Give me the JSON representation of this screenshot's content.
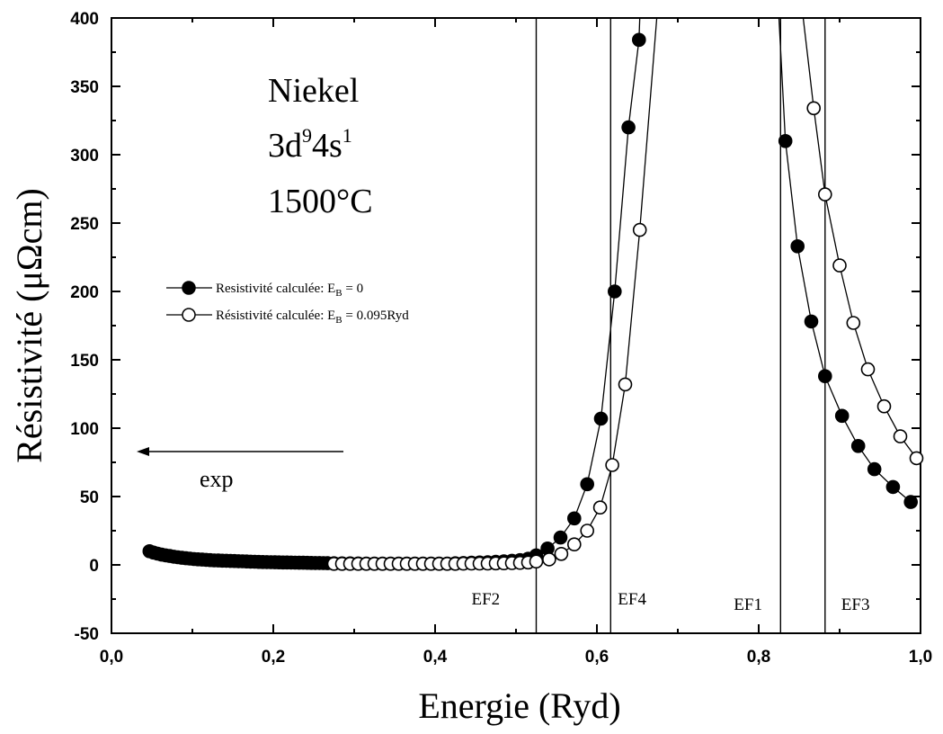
{
  "chart_data": {
    "type": "scatter",
    "xlabel": "Energie (Ryd)",
    "ylabel": "Résistivité (μΩcm)",
    "xlim": [
      0.0,
      1.0
    ],
    "ylim": [
      -50,
      400
    ],
    "x_ticks": [
      "0,0",
      "0,2",
      "0,4",
      "0,6",
      "0,8",
      "1,0"
    ],
    "x_tick_values": [
      0.0,
      0.2,
      0.4,
      0.6,
      0.8,
      1.0
    ],
    "y_ticks": [
      "-50",
      "0",
      "50",
      "100",
      "150",
      "200",
      "250",
      "300",
      "350",
      "400"
    ],
    "y_tick_values": [
      -50,
      0,
      50,
      100,
      150,
      200,
      250,
      300,
      350,
      400
    ],
    "annotation": {
      "element": "Niekel",
      "config_base": "3d",
      "config_sup1": "9",
      "config_mid": "4s",
      "config_sup2": "1",
      "temperature": "1500°C"
    },
    "legend": {
      "placement": "upper-left",
      "items": [
        {
          "prefix": "Resistivité calculée: E",
          "sub": "B",
          "suffix": " = 0",
          "marker": "filled"
        },
        {
          "prefix": "Résistivité calculée: E",
          "sub": "B",
          "suffix": " = 0.095Ryd",
          "marker": "open"
        }
      ]
    },
    "arrow_label": "exp",
    "exp_value": 85,
    "fermi_levels": [
      {
        "label": "EF2",
        "x": 0.525
      },
      {
        "label": "EF4",
        "x": 0.617
      },
      {
        "label": "EF1",
        "x": 0.827
      },
      {
        "label": "EF3",
        "x": 0.882
      }
    ],
    "series": [
      {
        "name": "Resistivité calculée: EB = 0",
        "marker": "filled",
        "left": {
          "x": [
            0.047,
            0.052,
            0.057,
            0.062,
            0.067,
            0.072,
            0.077,
            0.082,
            0.087,
            0.092,
            0.097,
            0.102,
            0.107,
            0.112,
            0.117,
            0.122,
            0.127,
            0.132,
            0.137,
            0.142,
            0.147,
            0.152,
            0.157,
            0.162,
            0.167,
            0.172,
            0.177,
            0.182,
            0.187,
            0.192,
            0.197,
            0.202,
            0.207,
            0.212,
            0.217,
            0.222,
            0.227,
            0.232,
            0.237,
            0.242,
            0.247,
            0.252,
            0.257,
            0.262,
            0.267,
            0.275,
            0.285,
            0.295,
            0.305,
            0.315,
            0.325,
            0.335,
            0.345,
            0.355,
            0.365,
            0.375,
            0.385,
            0.395,
            0.405,
            0.415,
            0.425,
            0.435,
            0.445,
            0.455,
            0.465,
            0.475,
            0.485,
            0.495,
            0.505,
            0.515,
            0.525,
            0.539,
            0.555,
            0.572,
            0.588,
            0.605,
            0.622,
            0.639,
            0.652
          ],
          "y": [
            10,
            9,
            8.2,
            7.5,
            7,
            6.5,
            6,
            5.6,
            5.2,
            4.9,
            4.6,
            4.3,
            4.1,
            3.9,
            3.7,
            3.5,
            3.3,
            3.2,
            3.1,
            3,
            2.9,
            2.8,
            2.7,
            2.6,
            2.5,
            2.4,
            2.3,
            2.2,
            2.1,
            2.05,
            2,
            1.9,
            1.85,
            1.8,
            1.75,
            1.7,
            1.65,
            1.6,
            1.55,
            1.5,
            1.45,
            1.4,
            1.35,
            1.3,
            1.25,
            1.2,
            1.15,
            1.1,
            1.05,
            1,
            1,
            1,
            1,
            1,
            1,
            1,
            1,
            1,
            1,
            1,
            1.2,
            1.4,
            1.6,
            1.8,
            2,
            2.3,
            2.6,
            3,
            3.5,
            4.5,
            7,
            12,
            20,
            34,
            59,
            107,
            200,
            320,
            384
          ]
        },
        "right": {
          "x": [
            0.833,
            0.848,
            0.865,
            0.882,
            0.903,
            0.923,
            0.943,
            0.966,
            0.988
          ],
          "y": [
            310,
            233,
            178,
            138,
            109,
            87,
            70,
            57,
            46
          ]
        }
      },
      {
        "name": "Résistivité calculée: EB = 0.095Ryd",
        "marker": "open",
        "left": {
          "x": [
            0.275,
            0.285,
            0.295,
            0.305,
            0.315,
            0.325,
            0.335,
            0.345,
            0.355,
            0.365,
            0.375,
            0.385,
            0.395,
            0.405,
            0.415,
            0.425,
            0.435,
            0.445,
            0.455,
            0.465,
            0.475,
            0.485,
            0.495,
            0.505,
            0.515,
            0.525,
            0.541,
            0.556,
            0.572,
            0.588,
            0.604,
            0.619,
            0.635,
            0.653
          ],
          "y": [
            0.8,
            0.8,
            0.8,
            0.8,
            0.8,
            0.8,
            0.8,
            0.8,
            0.8,
            0.8,
            0.8,
            0.8,
            0.8,
            0.8,
            0.8,
            0.8,
            0.9,
            1,
            1,
            1,
            1.1,
            1.2,
            1.3,
            1.5,
            1.8,
            2.5,
            4,
            8,
            15,
            25,
            42,
            73,
            132,
            245
          ]
        },
        "right": {
          "x": [
            0.868,
            0.882,
            0.9,
            0.917,
            0.935,
            0.955,
            0.975,
            0.995
          ],
          "y": [
            334,
            271,
            219,
            177,
            143,
            116,
            94,
            78
          ]
        }
      }
    ]
  }
}
